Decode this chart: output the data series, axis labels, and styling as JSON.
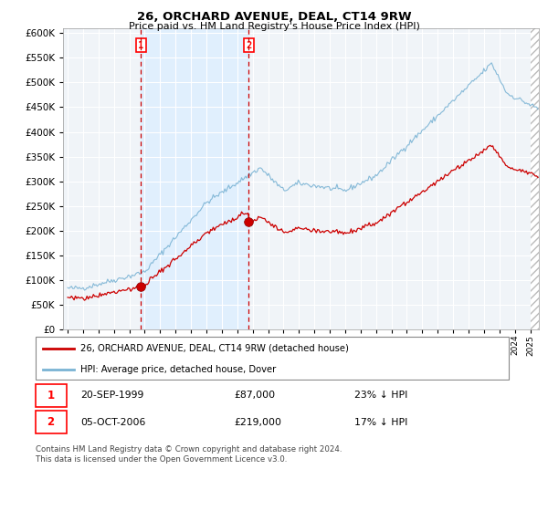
{
  "title": "26, ORCHARD AVENUE, DEAL, CT14 9RW",
  "subtitle": "Price paid vs. HM Land Registry's House Price Index (HPI)",
  "ylim": [
    0,
    600000
  ],
  "yticks": [
    0,
    50000,
    100000,
    150000,
    200000,
    250000,
    300000,
    350000,
    400000,
    450000,
    500000,
    550000,
    600000
  ],
  "sale1_year": 1999.75,
  "sale1_price": 87000,
  "sale1_date": "20-SEP-1999",
  "sale1_label": "23% ↓ HPI",
  "sale2_year": 2006.75,
  "sale2_price": 219000,
  "sale2_date": "05-OCT-2006",
  "sale2_label": "17% ↓ HPI",
  "legend_line1": "26, ORCHARD AVENUE, DEAL, CT14 9RW (detached house)",
  "legend_line2": "HPI: Average price, detached house, Dover",
  "footer": "Contains HM Land Registry data © Crown copyright and database right 2024.\nThis data is licensed under the Open Government Licence v3.0.",
  "hpi_color": "#7ab3d4",
  "price_color": "#cc0000",
  "vline_color": "#cc0000",
  "shade_color": "#ddeeff",
  "background_color": "#f0f4f8",
  "grid_color": "#ffffff",
  "hatch_color": "#bbbbbb"
}
